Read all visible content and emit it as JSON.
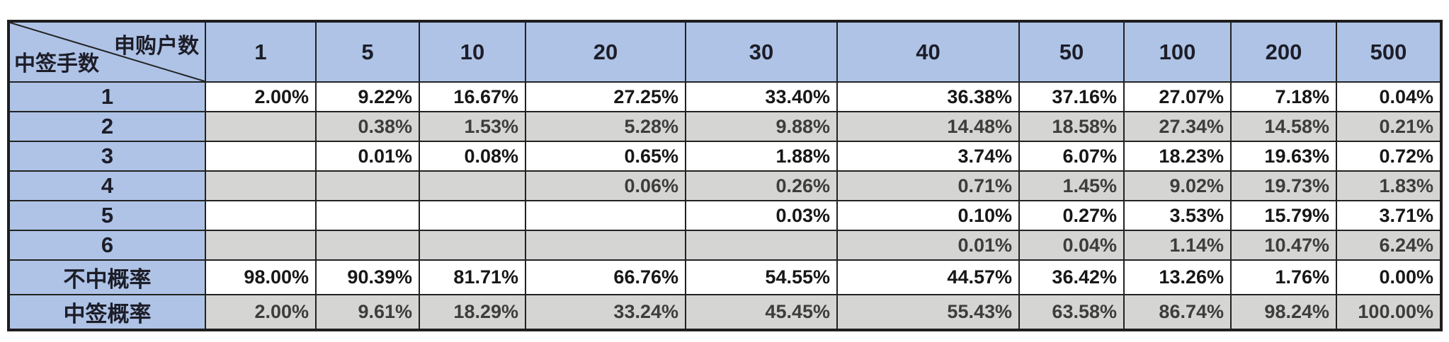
{
  "chart_data": {
    "type": "table",
    "corner_top_right": "申购户数",
    "corner_bottom_left": "中签手数",
    "column_headers": [
      "1",
      "5",
      "10",
      "20",
      "30",
      "40",
      "50",
      "100",
      "200",
      "500"
    ],
    "rows": [
      {
        "label": "1",
        "values": [
          "2.00%",
          "9.22%",
          "16.67%",
          "27.25%",
          "33.40%",
          "36.38%",
          "37.16%",
          "27.07%",
          "7.18%",
          "0.04%"
        ]
      },
      {
        "label": "2",
        "values": [
          "",
          "0.38%",
          "1.53%",
          "5.28%",
          "9.88%",
          "14.48%",
          "18.58%",
          "27.34%",
          "14.58%",
          "0.21%"
        ]
      },
      {
        "label": "3",
        "values": [
          "",
          "0.01%",
          "0.08%",
          "0.65%",
          "1.88%",
          "3.74%",
          "6.07%",
          "18.23%",
          "19.63%",
          "0.72%"
        ]
      },
      {
        "label": "4",
        "values": [
          "",
          "",
          "",
          "0.06%",
          "0.26%",
          "0.71%",
          "1.45%",
          "9.02%",
          "19.73%",
          "1.83%"
        ]
      },
      {
        "label": "5",
        "values": [
          "",
          "",
          "",
          "",
          "0.03%",
          "0.10%",
          "0.27%",
          "3.53%",
          "15.79%",
          "3.71%"
        ]
      },
      {
        "label": "6",
        "values": [
          "",
          "",
          "",
          "",
          "",
          "0.01%",
          "0.04%",
          "1.14%",
          "10.47%",
          "6.24%"
        ]
      },
      {
        "label": "不中概率",
        "values": [
          "98.00%",
          "90.39%",
          "81.71%",
          "66.76%",
          "54.55%",
          "44.57%",
          "36.42%",
          "13.26%",
          "1.76%",
          "0.00%"
        ]
      },
      {
        "label": "中签概率",
        "values": [
          "2.00%",
          "9.61%",
          "18.29%",
          "33.24%",
          "45.45%",
          "55.43%",
          "63.58%",
          "86.74%",
          "98.24%",
          "100.00%"
        ]
      }
    ],
    "layout_hints": {
      "stripe_pattern": "odd data rows white, even data rows gray",
      "grid": "on"
    }
  },
  "colors": {
    "header_bg": "#aec3e6",
    "stripe_gray": "#d5d6d4",
    "stripe_white": "#ffffff",
    "border": "#222222",
    "text": "#171717"
  }
}
